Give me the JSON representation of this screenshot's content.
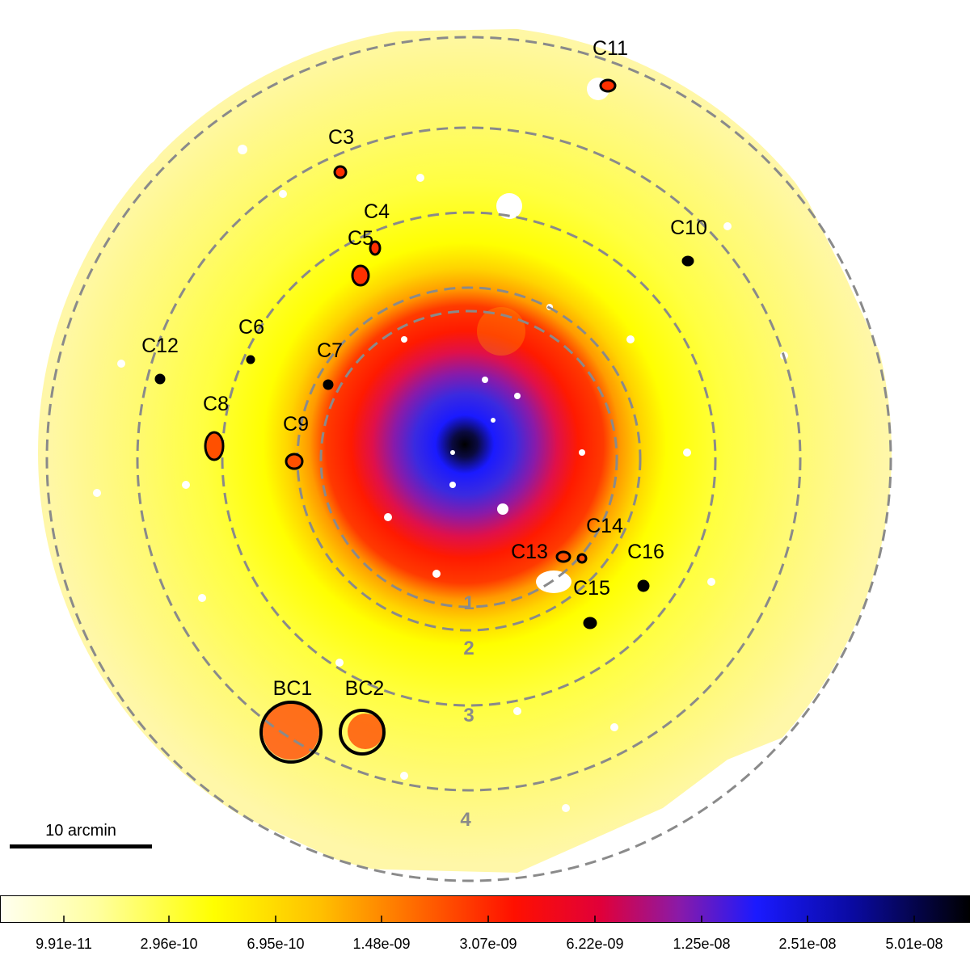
{
  "image": {
    "description_type": "X-ray surface-brightness map with dashed annuli and labeled clumps",
    "colors": {
      "background": "#ffffff",
      "outer_low": "#fff7a8",
      "mid_yellow": "#ffff00",
      "orange": "#ff9a00",
      "red": "#ff1a00",
      "purple": "#7a1ab8",
      "blue": "#1a1aff",
      "core": "#000000",
      "ring_dash": "#8a8a8a",
      "contour": "#000000"
    }
  },
  "rings": [
    {
      "label": "1"
    },
    {
      "label": "2"
    },
    {
      "label": "3"
    },
    {
      "label": "4"
    }
  ],
  "clumps": [
    {
      "id": "c11",
      "label": "C11"
    },
    {
      "id": "c3",
      "label": "C3"
    },
    {
      "id": "c4",
      "label": "C4"
    },
    {
      "id": "c5",
      "label": "C5"
    },
    {
      "id": "c10",
      "label": "C10"
    },
    {
      "id": "c6",
      "label": "C6"
    },
    {
      "id": "c12",
      "label": "C12"
    },
    {
      "id": "c7",
      "label": "C7"
    },
    {
      "id": "c8",
      "label": "C8"
    },
    {
      "id": "c9",
      "label": "C9"
    },
    {
      "id": "c14",
      "label": "C14"
    },
    {
      "id": "c13",
      "label": "C13"
    },
    {
      "id": "c16",
      "label": "C16"
    },
    {
      "id": "c15",
      "label": "C15"
    }
  ],
  "background_clusters": [
    {
      "id": "bc1",
      "label": "BC1"
    },
    {
      "id": "bc2",
      "label": "BC2"
    }
  ],
  "scale_bar": {
    "label": "10 arcmin"
  },
  "colorbar": {
    "ticks": [
      "9.91e-11",
      "2.96e-10",
      "6.95e-10",
      "1.48e-09",
      "3.07e-09",
      "6.22e-09",
      "1.25e-08",
      "2.51e-08",
      "5.01e-08"
    ]
  }
}
